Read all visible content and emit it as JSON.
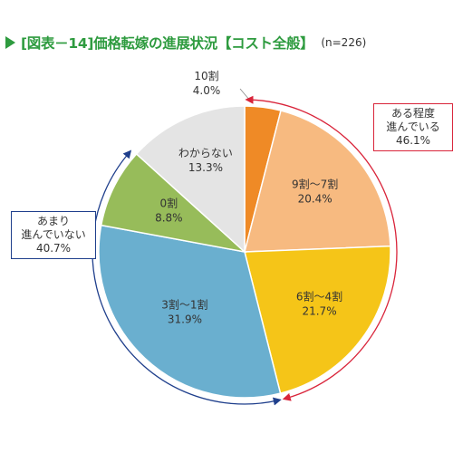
{
  "title": {
    "main": "[図表－14]価格転嫁の進展状況【コスト全般】",
    "n": "(n=226)"
  },
  "groups": {
    "advanced": {
      "label1": "ある程度",
      "label2": "進んでいる",
      "value": "46.1%",
      "color": "#d9243a"
    },
    "not_advanced": {
      "label1": "あまり",
      "label2": "進んでいない",
      "value": "40.7%",
      "color": "#1f3f8c"
    }
  },
  "chart_data": {
    "type": "pie",
    "title": "[図表－14]価格転嫁の進展状況【コスト全般】",
    "start": "12 o'clock",
    "direction": "clockwise",
    "slices": [
      {
        "name": "10割",
        "value": 4.0,
        "label": "4.0%",
        "color": "#ef8a26"
      },
      {
        "name": "9割～7割",
        "value": 20.4,
        "label": "20.4%",
        "color": "#f7ba80"
      },
      {
        "name": "6割～4割",
        "value": 21.7,
        "label": "21.7%",
        "color": "#f5c518"
      },
      {
        "name": "3割～1割",
        "value": 31.9,
        "label": "31.9%",
        "color": "#6aafcf"
      },
      {
        "name": "0割",
        "value": 8.8,
        "label": "8.8%",
        "color": "#97bc5a"
      },
      {
        "name": "わからない",
        "value": 13.3,
        "label": "13.3%",
        "color": "#e4e4e4"
      }
    ]
  }
}
